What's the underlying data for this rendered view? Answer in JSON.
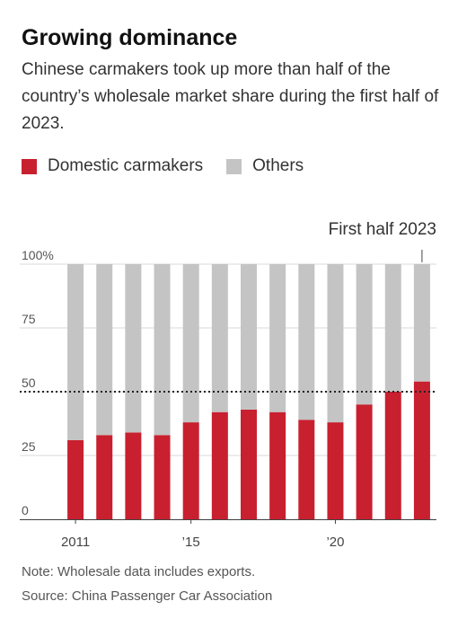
{
  "title": "Growing dominance",
  "subtitle": "Chinese carmakers took up more than half of the country’s wholesale market share during the first half of 2023.",
  "legend": [
    {
      "label": "Domestic carmakers",
      "color": "#c8202f"
    },
    {
      "label": "Others",
      "color": "#c4c4c4"
    }
  ],
  "annotation": "First half 2023",
  "note": "Note: Wholesale data includes exports.",
  "source": "Source: China Passenger Car Association",
  "chart_data": {
    "type": "bar",
    "stacked": true,
    "categories": [
      "2011",
      "2012",
      "2013",
      "2014",
      "2015",
      "2016",
      "2017",
      "2018",
      "2019",
      "2020",
      "2021",
      "2022",
      "First half 2023"
    ],
    "x_tick_labels": [
      {
        "category": "2011",
        "label": "2011"
      },
      {
        "category": "2015",
        "label": "’15"
      },
      {
        "category": "2020",
        "label": "’20"
      }
    ],
    "series": [
      {
        "name": "Domestic carmakers",
        "color": "#c8202f",
        "values": [
          31,
          33,
          34,
          33,
          38,
          42,
          43,
          42,
          39,
          38,
          45,
          50,
          54
        ]
      },
      {
        "name": "Others",
        "color": "#c4c4c4",
        "values": [
          69,
          67,
          66,
          67,
          62,
          58,
          57,
          58,
          61,
          62,
          55,
          50,
          46
        ]
      }
    ],
    "ylim": [
      0,
      100
    ],
    "yticks": [
      {
        "value": 0,
        "label": "0"
      },
      {
        "value": 25,
        "label": "25"
      },
      {
        "value": 50,
        "label": "50"
      },
      {
        "value": 75,
        "label": "75"
      },
      {
        "value": 100,
        "label": "100%"
      }
    ],
    "reference_line": 50,
    "grid": true
  }
}
